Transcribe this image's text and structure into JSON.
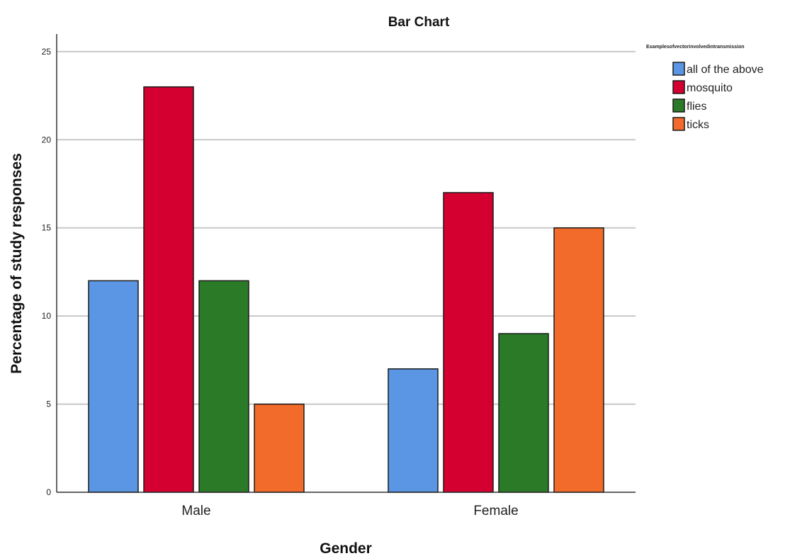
{
  "chart_data": {
    "type": "bar",
    "title": "Bar Chart",
    "xlabel": "Gender",
    "ylabel": "Percentage of study responses",
    "categories": [
      "Male",
      "Female"
    ],
    "series": [
      {
        "name": "all of the above",
        "color": "#5a96e3",
        "values": [
          12,
          7
        ]
      },
      {
        "name": "mosquito",
        "color": "#d40030",
        "values": [
          23,
          17
        ]
      },
      {
        "name": "flies",
        "color": "#2a7a27",
        "values": [
          12,
          9
        ]
      },
      {
        "name": "ticks",
        "color": "#f26b2a",
        "values": [
          5,
          15
        ]
      }
    ],
    "ylim": [
      0,
      26
    ],
    "yticks": [
      0,
      5,
      10,
      15,
      20,
      25
    ],
    "grid": true,
    "legend": {
      "title": "Examplesofvectorinvolvedintransmission",
      "position": "top-right"
    }
  }
}
